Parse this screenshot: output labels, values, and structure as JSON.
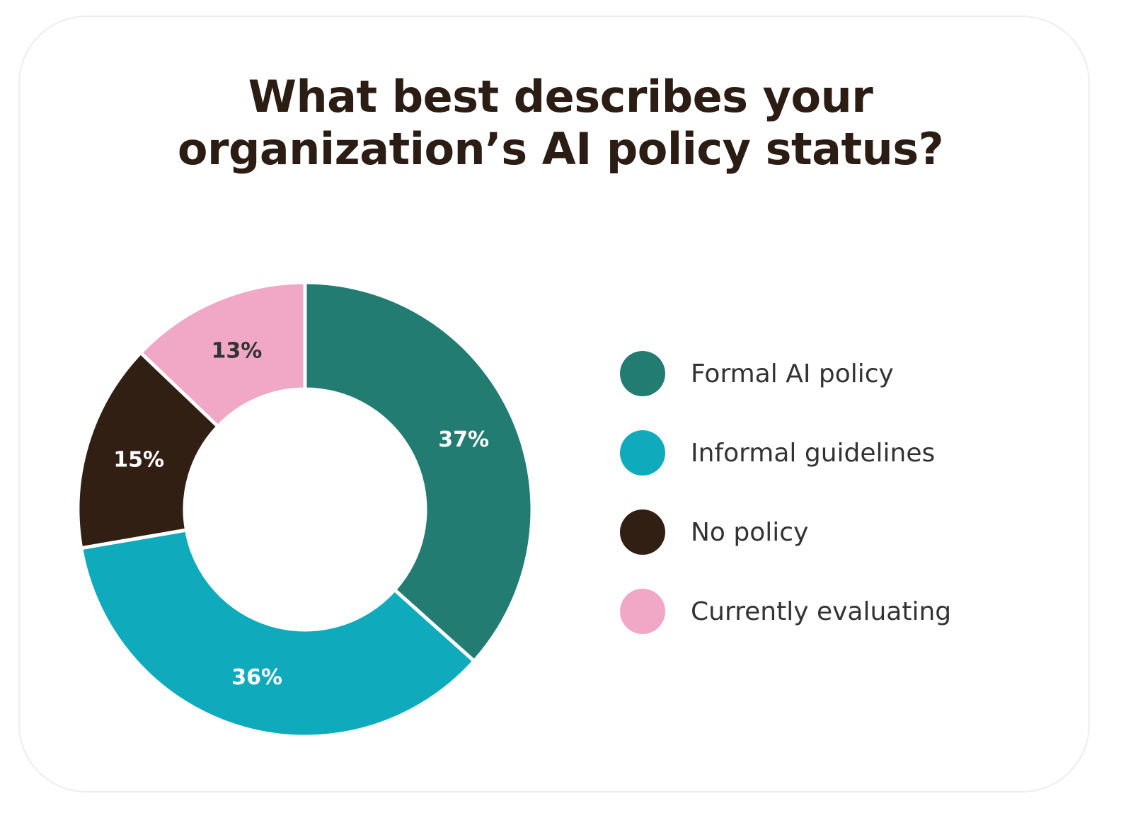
{
  "chart_data": {
    "type": "pie",
    "variant": "donut",
    "title": "What best describes your organization’s AI policy status?",
    "title_lines": [
      "What best describes your",
      "organization’s AI policy status?"
    ],
    "categories": [
      "Formal AI policy",
      "Informal guidelines",
      "No policy",
      "Currently evaluating"
    ],
    "values": [
      37,
      36,
      15,
      13
    ],
    "labels": [
      "37%",
      "36%",
      "15%",
      "13%"
    ],
    "colors": [
      "#227c72",
      "#0fabbd",
      "#311f14",
      "#f1a7c6"
    ],
    "label_colors": [
      "#ffffff",
      "#ffffff",
      "#ffffff",
      "#333333"
    ],
    "start_angle": "12 o'clock",
    "direction": "clockwise",
    "legend_position": "right"
  },
  "legend": {
    "items": [
      {
        "label": "Formal AI policy",
        "color": "#227c72"
      },
      {
        "label": "Informal guidelines",
        "color": "#0fabbd"
      },
      {
        "label": "No policy",
        "color": "#311f14"
      },
      {
        "label": "Currently evaluating",
        "color": "#f1a7c6"
      }
    ]
  }
}
